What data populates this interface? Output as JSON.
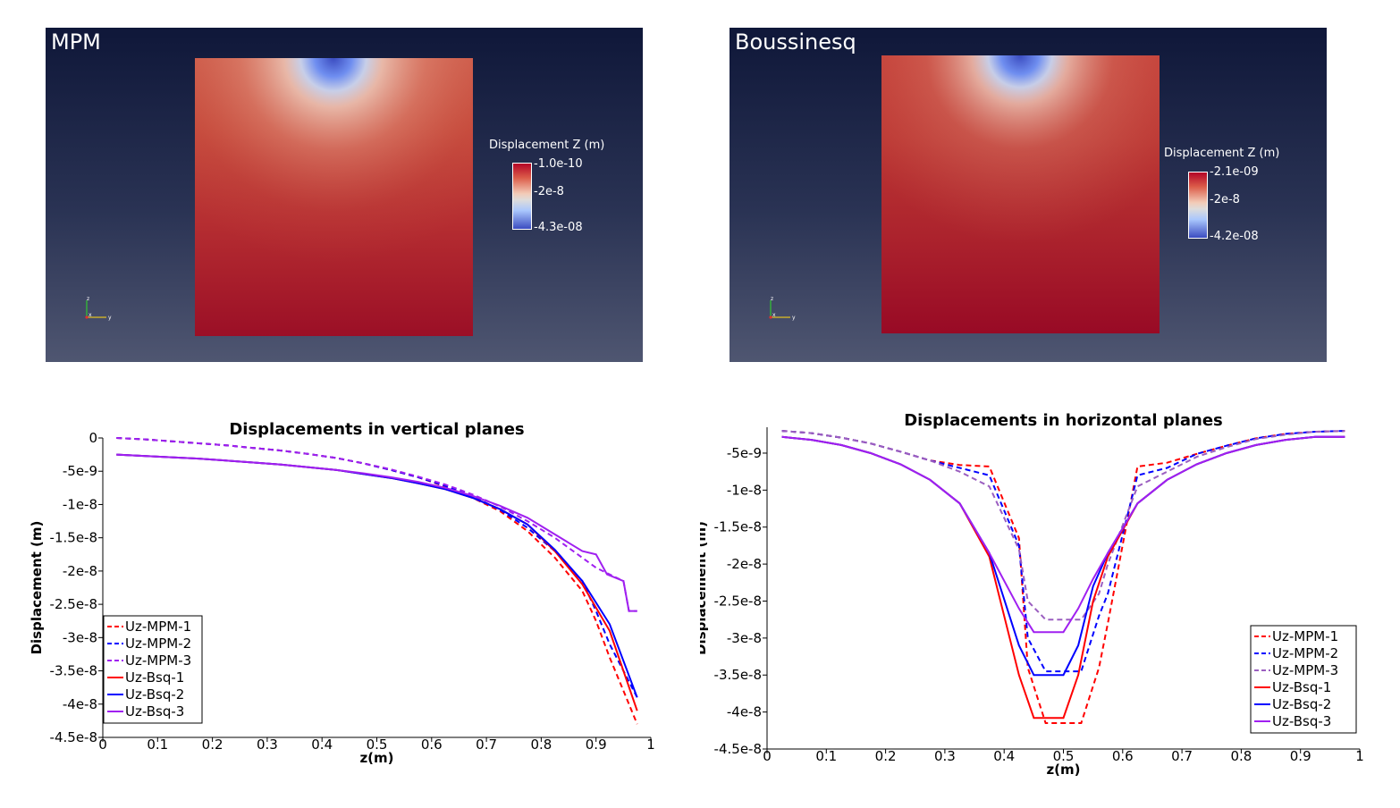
{
  "views": [
    {
      "title": "MPM",
      "colorbar": {
        "title": "Displacement Z (m)",
        "max": "-1.0e-10",
        "mid": "-2e-8",
        "min": "-4.3e-08"
      },
      "axes_triad": {
        "x": "x",
        "y": "y",
        "z": "z"
      }
    },
    {
      "title": "Boussinesq",
      "colorbar": {
        "title": "Displacement Z (m)",
        "max": "-2.1e-09",
        "mid": "-2e-8",
        "min": "-4.2e-08"
      },
      "axes_triad": {
        "x": "x",
        "y": "y",
        "z": "z"
      }
    }
  ],
  "colors": {
    "red": "#ff0000",
    "blue": "#0000ff",
    "purple": "#a020f0",
    "purple_dash_horizontal": "#9b5fc0"
  },
  "chart_data": [
    {
      "type": "line",
      "title": "Displacements in vertical planes",
      "xlabel": "z(m)",
      "ylabel": "Displacement (m)",
      "xlim": [
        0,
        1
      ],
      "ylim": [
        -4.5e-08,
        0
      ],
      "xticks": [
        0,
        0.1,
        0.2,
        0.3,
        0.4,
        0.5,
        0.6,
        0.7,
        0.8,
        0.9,
        1
      ],
      "xtick_labels": [
        "0",
        "0.1",
        "0.2",
        "0.3",
        "0.4",
        "0.5",
        "0.6",
        "0.7",
        "0.8",
        "0.9",
        "1"
      ],
      "yticks": [
        0,
        -5e-09,
        -1e-08,
        -1.5e-08,
        -2e-08,
        -2.5e-08,
        -3e-08,
        -3.5e-08,
        -4e-08,
        -4.5e-08
      ],
      "ytick_labels": [
        "0",
        "-5e-9",
        "-1e-8",
        "-1.5e-8",
        "-2e-8",
        "-2.5e-8",
        "-3e-8",
        "-3.5e-8",
        "-4e-8",
        "-4.5e-8"
      ],
      "grid": false,
      "legend_position": "bottom-left",
      "series": [
        {
          "name": "Uz-MPM-1",
          "color": "#ff0000",
          "dash": true,
          "x": [
            0.025,
            0.075,
            0.125,
            0.175,
            0.225,
            0.275,
            0.325,
            0.375,
            0.425,
            0.475,
            0.525,
            0.575,
            0.625,
            0.675,
            0.725,
            0.775,
            0.825,
            0.875,
            0.9,
            0.925,
            0.95,
            0.975
          ],
          "y": [
            0,
            -2e-10,
            -5e-10,
            -8e-10,
            -1.1e-09,
            -1.5e-09,
            -1.9e-09,
            -2.4e-09,
            -3e-09,
            -3.8e-09,
            -4.8e-09,
            -5.9e-09,
            -7.3e-09,
            -9e-09,
            -1.1e-08,
            -1.4e-08,
            -1.8e-08,
            -2.3e-08,
            -2.75e-08,
            -3.3e-08,
            -3.8e-08,
            -4.3e-08
          ]
        },
        {
          "name": "Uz-MPM-2",
          "color": "#0000ff",
          "dash": true,
          "x": [
            0.025,
            0.075,
            0.125,
            0.175,
            0.225,
            0.275,
            0.325,
            0.375,
            0.425,
            0.475,
            0.525,
            0.575,
            0.625,
            0.675,
            0.725,
            0.775,
            0.825,
            0.875,
            0.9,
            0.925,
            0.95,
            0.975
          ],
          "y": [
            0,
            -2e-10,
            -5e-10,
            -8e-10,
            -1.1e-09,
            -1.5e-09,
            -1.9e-09,
            -2.4e-09,
            -3e-09,
            -3.8e-09,
            -4.8e-09,
            -5.9e-09,
            -7.2e-09,
            -8.8e-09,
            -1.08e-08,
            -1.35e-08,
            -1.7e-08,
            -2.15e-08,
            -2.6e-08,
            -3.1e-08,
            -3.5e-08,
            -3.9e-08
          ]
        },
        {
          "name": "Uz-MPM-3",
          "color": "#a020f0",
          "dash": true,
          "x": [
            0.025,
            0.075,
            0.125,
            0.175,
            0.225,
            0.275,
            0.325,
            0.375,
            0.425,
            0.475,
            0.525,
            0.575,
            0.625,
            0.675,
            0.725,
            0.775,
            0.825,
            0.875,
            0.9,
            0.925,
            0.95,
            0.96,
            0.975
          ],
          "y": [
            0,
            -2e-10,
            -5e-10,
            -8e-10,
            -1.1e-09,
            -1.5e-09,
            -1.9e-09,
            -2.4e-09,
            -3e-09,
            -3.8e-09,
            -4.7e-09,
            -5.8e-09,
            -7e-09,
            -8.5e-09,
            -1.03e-08,
            -1.25e-08,
            -1.5e-08,
            -1.8e-08,
            -1.95e-08,
            -2.05e-08,
            -2.15e-08,
            -2.6e-08,
            -2.6e-08
          ]
        },
        {
          "name": "Uz-Bsq-1",
          "color": "#ff0000",
          "dash": false,
          "x": [
            0.025,
            0.075,
            0.125,
            0.175,
            0.225,
            0.275,
            0.325,
            0.375,
            0.425,
            0.475,
            0.525,
            0.575,
            0.625,
            0.675,
            0.725,
            0.775,
            0.825,
            0.875,
            0.925,
            0.975
          ],
          "y": [
            -2.5e-09,
            -2.7e-09,
            -2.9e-09,
            -3.1e-09,
            -3.4e-09,
            -3.7e-09,
            -4e-09,
            -4.4e-09,
            -4.8e-09,
            -5.4e-09,
            -6e-09,
            -6.8e-09,
            -7.7e-09,
            -9e-09,
            -1.07e-08,
            -1.3e-08,
            -1.7e-08,
            -2.2e-08,
            -2.9e-08,
            -4.1e-08
          ]
        },
        {
          "name": "Uz-Bsq-2",
          "color": "#0000ff",
          "dash": false,
          "x": [
            0.025,
            0.075,
            0.125,
            0.175,
            0.225,
            0.275,
            0.325,
            0.375,
            0.425,
            0.475,
            0.525,
            0.575,
            0.625,
            0.675,
            0.725,
            0.775,
            0.825,
            0.875,
            0.925,
            0.975
          ],
          "y": [
            -2.5e-09,
            -2.7e-09,
            -2.9e-09,
            -3.1e-09,
            -3.4e-09,
            -3.7e-09,
            -4e-09,
            -4.4e-09,
            -4.8e-09,
            -5.4e-09,
            -6e-09,
            -6.8e-09,
            -7.7e-09,
            -9e-09,
            -1.07e-08,
            -1.3e-08,
            -1.68e-08,
            -2.15e-08,
            -2.8e-08,
            -3.9e-08
          ]
        },
        {
          "name": "Uz-Bsq-3",
          "color": "#a020f0",
          "dash": false,
          "x": [
            0.025,
            0.075,
            0.125,
            0.175,
            0.225,
            0.275,
            0.325,
            0.375,
            0.425,
            0.475,
            0.525,
            0.575,
            0.625,
            0.675,
            0.725,
            0.775,
            0.825,
            0.875,
            0.9,
            0.92,
            0.95,
            0.96,
            0.975
          ],
          "y": [
            -2.5e-09,
            -2.7e-09,
            -2.9e-09,
            -3.1e-09,
            -3.4e-09,
            -3.7e-09,
            -4e-09,
            -4.4e-09,
            -4.8e-09,
            -5.3e-09,
            -5.9e-09,
            -6.6e-09,
            -7.5e-09,
            -8.7e-09,
            -1.02e-08,
            -1.2e-08,
            -1.45e-08,
            -1.7e-08,
            -1.75e-08,
            -2.05e-08,
            -2.15e-08,
            -2.6e-08,
            -2.6e-08
          ]
        }
      ]
    },
    {
      "type": "line",
      "title": "Displacements in horizontal planes",
      "xlabel": "z(m)",
      "ylabel": "Displacement (m)",
      "xlim": [
        0,
        1
      ],
      "ylim": [
        -4.5e-08,
        -1.5e-09
      ],
      "xticks": [
        0,
        0.1,
        0.2,
        0.3,
        0.4,
        0.5,
        0.6,
        0.7,
        0.8,
        0.9,
        1
      ],
      "xtick_labels": [
        "0",
        "0.1",
        "0.2",
        "0.3",
        "0.4",
        "0.5",
        "0.6",
        "0.7",
        "0.8",
        "0.9",
        "1"
      ],
      "yticks": [
        -5e-09,
        -1e-08,
        -1.5e-08,
        -2e-08,
        -2.5e-08,
        -3e-08,
        -3.5e-08,
        -4e-08,
        -4.5e-08
      ],
      "ytick_labels": [
        "-5e-9",
        "-1e-8",
        "-1.5e-8",
        "-2e-8",
        "-2.5e-8",
        "-3e-8",
        "-3.5e-8",
        "-4e-8",
        "-4.5e-8"
      ],
      "grid": false,
      "legend_position": "bottom-right",
      "series": [
        {
          "name": "Uz-MPM-1",
          "color": "#ff0000",
          "dash": true,
          "x": [
            0.025,
            0.075,
            0.125,
            0.175,
            0.225,
            0.275,
            0.325,
            0.375,
            0.425,
            0.44,
            0.47,
            0.5,
            0.53,
            0.56,
            0.575,
            0.625,
            0.675,
            0.725,
            0.775,
            0.825,
            0.875,
            0.925,
            0.975
          ],
          "y": [
            -2e-09,
            -2.3e-09,
            -2.9e-09,
            -3.7e-09,
            -4.8e-09,
            -6e-09,
            -6.6e-09,
            -6.8e-09,
            -1.65e-08,
            -3.4e-08,
            -4.15e-08,
            -4.15e-08,
            -4.15e-08,
            -3.4e-08,
            -2.8e-08,
            -6.8e-09,
            -6.3e-09,
            -5.1e-09,
            -4e-09,
            -3e-09,
            -2.4e-09,
            -2.1e-09,
            -2e-09
          ]
        },
        {
          "name": "Uz-MPM-2",
          "color": "#0000ff",
          "dash": true,
          "x": [
            0.025,
            0.075,
            0.125,
            0.175,
            0.225,
            0.275,
            0.325,
            0.375,
            0.425,
            0.44,
            0.47,
            0.5,
            0.53,
            0.56,
            0.575,
            0.625,
            0.675,
            0.725,
            0.775,
            0.825,
            0.875,
            0.925,
            0.975
          ],
          "y": [
            -2e-09,
            -2.3e-09,
            -2.9e-09,
            -3.7e-09,
            -4.8e-09,
            -6e-09,
            -7e-09,
            -8e-09,
            -1.75e-08,
            -3e-08,
            -3.45e-08,
            -3.45e-08,
            -3.45e-08,
            -2.7e-08,
            -2.4e-08,
            -8e-09,
            -7e-09,
            -5.1e-09,
            -4e-09,
            -3e-09,
            -2.4e-09,
            -2.1e-09,
            -2e-09
          ]
        },
        {
          "name": "Uz-MPM-3",
          "color": "#9b5fc0",
          "dash": true,
          "x": [
            0.025,
            0.075,
            0.125,
            0.175,
            0.225,
            0.275,
            0.325,
            0.375,
            0.425,
            0.44,
            0.47,
            0.5,
            0.53,
            0.56,
            0.575,
            0.625,
            0.675,
            0.725,
            0.775,
            0.825,
            0.875,
            0.925,
            0.975
          ],
          "y": [
            -2e-09,
            -2.3e-09,
            -2.9e-09,
            -3.7e-09,
            -4.8e-09,
            -6e-09,
            -7.5e-09,
            -9.5e-09,
            -1.8e-08,
            -2.5e-08,
            -2.75e-08,
            -2.75e-08,
            -2.75e-08,
            -2.4e-08,
            -2e-08,
            -9.5e-09,
            -7.5e-09,
            -5.5e-09,
            -4.2e-09,
            -3.1e-09,
            -2.5e-09,
            -2.1e-09,
            -2e-09
          ]
        },
        {
          "name": "Uz-Bsq-1",
          "color": "#ff0000",
          "dash": false,
          "x": [
            0.025,
            0.075,
            0.125,
            0.175,
            0.225,
            0.275,
            0.325,
            0.375,
            0.425,
            0.45,
            0.475,
            0.5,
            0.525,
            0.55,
            0.575,
            0.625,
            0.675,
            0.725,
            0.775,
            0.825,
            0.875,
            0.925,
            0.975
          ],
          "y": [
            -2.8e-09,
            -3.2e-09,
            -3.9e-09,
            -5e-09,
            -6.5e-09,
            -8.6e-09,
            -1.18e-08,
            -1.9e-08,
            -3.5e-08,
            -4.08e-08,
            -4.08e-08,
            -4.08e-08,
            -3.5e-08,
            -2.5e-08,
            -1.9e-08,
            -1.18e-08,
            -8.6e-09,
            -6.5e-09,
            -5e-09,
            -3.9e-09,
            -3.2e-09,
            -2.8e-09,
            -2.8e-09
          ]
        },
        {
          "name": "Uz-Bsq-2",
          "color": "#0000ff",
          "dash": false,
          "x": [
            0.025,
            0.075,
            0.125,
            0.175,
            0.225,
            0.275,
            0.325,
            0.375,
            0.425,
            0.45,
            0.475,
            0.5,
            0.525,
            0.55,
            0.575,
            0.625,
            0.675,
            0.725,
            0.775,
            0.825,
            0.875,
            0.925,
            0.975
          ],
          "y": [
            -2.8e-09,
            -3.2e-09,
            -3.9e-09,
            -5e-09,
            -6.5e-09,
            -8.6e-09,
            -1.18e-08,
            -1.85e-08,
            -3.1e-08,
            -3.5e-08,
            -3.5e-08,
            -3.5e-08,
            -3.1e-08,
            -2.3e-08,
            -1.85e-08,
            -1.18e-08,
            -8.6e-09,
            -6.5e-09,
            -5e-09,
            -3.9e-09,
            -3.2e-09,
            -2.8e-09,
            -2.8e-09
          ]
        },
        {
          "name": "Uz-Bsq-3",
          "color": "#a020f0",
          "dash": false,
          "x": [
            0.025,
            0.075,
            0.125,
            0.175,
            0.225,
            0.275,
            0.325,
            0.375,
            0.425,
            0.45,
            0.475,
            0.5,
            0.525,
            0.55,
            0.575,
            0.625,
            0.675,
            0.725,
            0.775,
            0.825,
            0.875,
            0.925,
            0.975
          ],
          "y": [
            -2.8e-09,
            -3.2e-09,
            -3.9e-09,
            -5e-09,
            -6.5e-09,
            -8.6e-09,
            -1.18e-08,
            -1.85e-08,
            -2.6e-08,
            -2.92e-08,
            -2.92e-08,
            -2.92e-08,
            -2.6e-08,
            -2.2e-08,
            -1.85e-08,
            -1.18e-08,
            -8.6e-09,
            -6.5e-09,
            -5e-09,
            -3.9e-09,
            -3.2e-09,
            -2.8e-09,
            -2.8e-09
          ]
        }
      ]
    }
  ]
}
